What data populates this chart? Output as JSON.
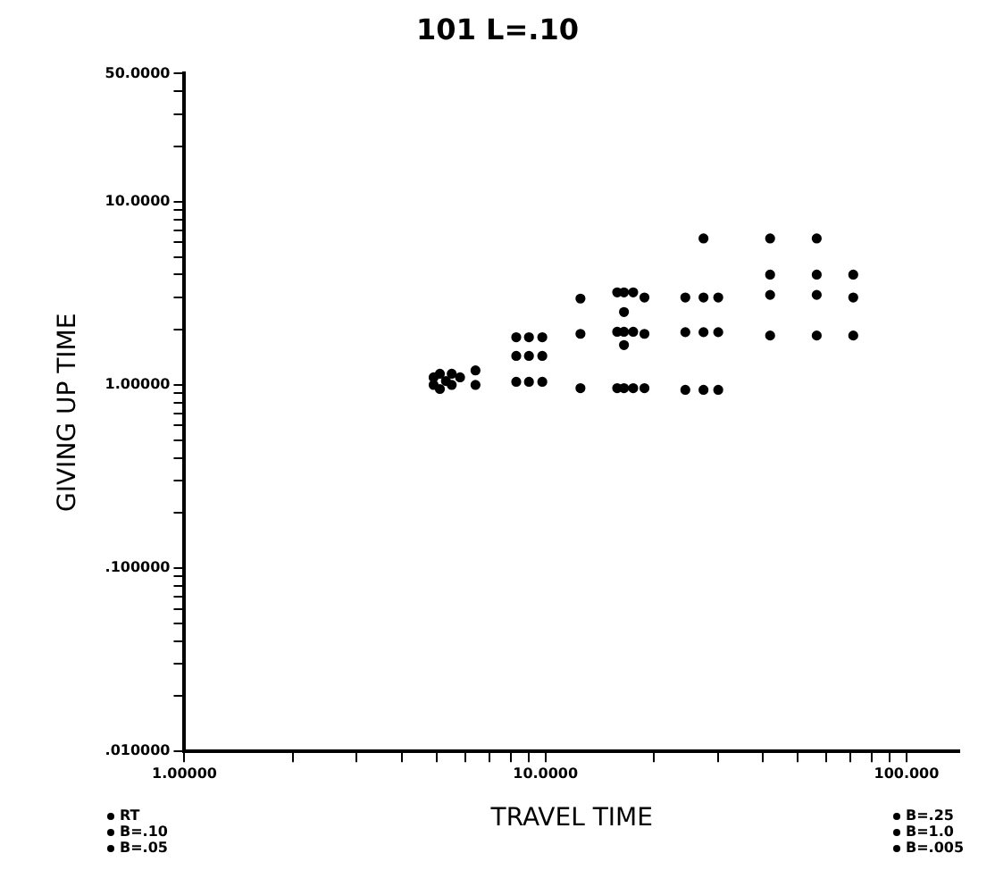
{
  "chart_data": {
    "type": "scatter",
    "title": "101 L=.10",
    "xlabel": "TRAVEL TIME",
    "ylabel": "GIVING UP TIME",
    "x": [
      4.9,
      4.9,
      5.1,
      5.1,
      5.3,
      5.5,
      5.5,
      5.8,
      6.4,
      6.4,
      8.3,
      9,
      9.8,
      8.3,
      9,
      9.8,
      8.3,
      9,
      9.8,
      12.5,
      12.5,
      12.5,
      15.8,
      16.5,
      17.5,
      16.5,
      15.8,
      16.5,
      17.5,
      16.5,
      15.8,
      16.5,
      17.5,
      18.8,
      18.8,
      18.8,
      24.4,
      27.4,
      30.1,
      24.4,
      27.4,
      30.1,
      24.4,
      27.4,
      30.1,
      27.4,
      41.9,
      56.4,
      41.9,
      56.4,
      71.2,
      41.9,
      56.4,
      71.2,
      41.9,
      56.4,
      71.2
    ],
    "values": [
      1.0,
      1.1,
      0.95,
      1.15,
      1.05,
      1.0,
      1.15,
      1.1,
      1.0,
      1.2,
      1.82,
      1.82,
      1.82,
      1.44,
      1.44,
      1.44,
      1.04,
      1.04,
      1.04,
      2.96,
      1.9,
      0.96,
      3.2,
      3.2,
      3.2,
      2.5,
      1.95,
      1.95,
      1.95,
      1.65,
      0.96,
      0.96,
      0.96,
      3.0,
      1.9,
      0.96,
      3.0,
      3.0,
      3.0,
      1.94,
      1.94,
      1.94,
      0.94,
      0.94,
      0.94,
      6.3,
      6.3,
      6.3,
      4.0,
      4.0,
      4.0,
      3.1,
      3.1,
      3.0,
      1.86,
      1.86,
      1.86
    ],
    "color": "#000000",
    "marker": "circle",
    "log": "xy",
    "grid": false,
    "legend": false,
    "xlim": [
      1,
      140
    ],
    "ylim": [
      0.01,
      50
    ],
    "xticks": [
      {
        "value": 1,
        "label": "1.00000"
      },
      {
        "value": 2,
        "label": null
      },
      {
        "value": 3,
        "label": null
      },
      {
        "value": 4,
        "label": null
      },
      {
        "value": 5,
        "label": null
      },
      {
        "value": 6,
        "label": null
      },
      {
        "value": 7,
        "label": null
      },
      {
        "value": 8,
        "label": null
      },
      {
        "value": 9,
        "label": null
      },
      {
        "value": 10,
        "label": "10.0000"
      },
      {
        "value": 20,
        "label": null
      },
      {
        "value": 30,
        "label": null
      },
      {
        "value": 40,
        "label": null
      },
      {
        "value": 50,
        "label": null
      },
      {
        "value": 60,
        "label": null
      },
      {
        "value": 70,
        "label": null
      },
      {
        "value": 80,
        "label": null
      },
      {
        "value": 90,
        "label": null
      },
      {
        "value": 100,
        "label": "100.000"
      }
    ],
    "yticks": [
      {
        "value": 0.01,
        "label": ".010000"
      },
      {
        "value": 0.02,
        "label": null
      },
      {
        "value": 0.03,
        "label": null
      },
      {
        "value": 0.04,
        "label": null
      },
      {
        "value": 0.05,
        "label": null
      },
      {
        "value": 0.06,
        "label": null
      },
      {
        "value": 0.07,
        "label": null
      },
      {
        "value": 0.08,
        "label": null
      },
      {
        "value": 0.09,
        "label": null
      },
      {
        "value": 0.1,
        "label": ".100000"
      },
      {
        "value": 0.2,
        "label": null
      },
      {
        "value": 0.3,
        "label": null
      },
      {
        "value": 0.4,
        "label": null
      },
      {
        "value": 0.5,
        "label": null
      },
      {
        "value": 0.6,
        "label": null
      },
      {
        "value": 0.7,
        "label": null
      },
      {
        "value": 0.8,
        "label": null
      },
      {
        "value": 0.9,
        "label": null
      },
      {
        "value": 1,
        "label": "1.00000"
      },
      {
        "value": 2,
        "label": null
      },
      {
        "value": 3,
        "label": null
      },
      {
        "value": 4,
        "label": null
      },
      {
        "value": 5,
        "label": null
      },
      {
        "value": 6,
        "label": null
      },
      {
        "value": 7,
        "label": null
      },
      {
        "value": 8,
        "label": null
      },
      {
        "value": 9,
        "label": null
      },
      {
        "value": 10,
        "label": "10.0000"
      },
      {
        "value": 20,
        "label": null
      },
      {
        "value": 30,
        "label": null
      },
      {
        "value": 40,
        "label": null
      },
      {
        "value": 50,
        "label": "50.0000"
      }
    ],
    "annotations": [
      "RT",
      "B=.10",
      "B=.05",
      "B=.25",
      "B=1.0",
      "B=.005"
    ]
  }
}
